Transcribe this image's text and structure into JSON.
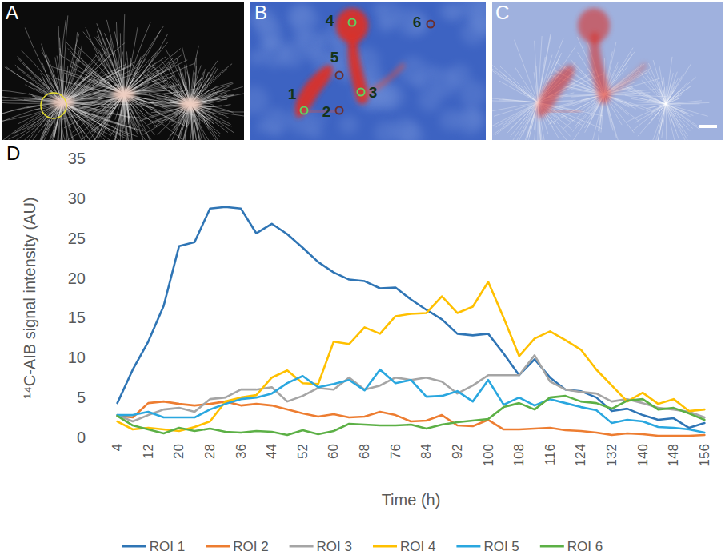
{
  "figure": {
    "panel_labels": [
      "A",
      "B",
      "C",
      "D"
    ],
    "roi_labels": [
      "1",
      "2",
      "3",
      "4",
      "5",
      "6"
    ]
  },
  "chart_data": {
    "type": "line",
    "x_label": "Time (h)",
    "y_label": "¹⁴C-AIB signal intensity (AU)",
    "categories": [
      "4",
      null,
      "12",
      null,
      "20",
      null,
      "28",
      null,
      "36",
      null,
      "44",
      null,
      "52",
      null,
      "60",
      null,
      "68",
      null,
      "76",
      null,
      "84",
      null,
      "92",
      null,
      "100",
      null,
      "108",
      null,
      "116",
      null,
      "124",
      null,
      "132",
      null,
      "140",
      null,
      "148",
      null,
      "156"
    ],
    "series": [
      {
        "name": "ROI 1",
        "color": "#2f75b5",
        "values": [
          4.3,
          8.5,
          12,
          16.5,
          24,
          24.5,
          28.7,
          28.9,
          28.7,
          25.6,
          26.8,
          25.5,
          23.8,
          22,
          20.7,
          19.8,
          19.6,
          18.7,
          18.8,
          17.3,
          16,
          14.8,
          13,
          12.8,
          13,
          10.5,
          7.8,
          9.8,
          7.5,
          6,
          5.8,
          5,
          3.3,
          3.6,
          2.8,
          2.2,
          2.4,
          1.2,
          1.8
        ]
      },
      {
        "name": "ROI 2",
        "color": "#ed7d31",
        "values": [
          2.7,
          2.5,
          4.3,
          4.5,
          4.2,
          4,
          4.2,
          4.5,
          4,
          4.2,
          4,
          3.5,
          3,
          2.6,
          2.9,
          2.5,
          2.6,
          3.2,
          2.8,
          2,
          2.1,
          2.8,
          1.5,
          1.4,
          2.2,
          1,
          1,
          1.1,
          1.2,
          0.9,
          0.8,
          0.6,
          0.3,
          0.5,
          0.4,
          0.2,
          0.2,
          0.2,
          0.3
        ]
      },
      {
        "name": "ROI 3",
        "color": "#a5a5a5",
        "values": [
          2.8,
          2,
          2.8,
          3.5,
          3.7,
          3.2,
          4.8,
          5,
          6,
          6,
          6.3,
          4.5,
          5.2,
          6.2,
          6,
          7.5,
          6,
          6.5,
          7.5,
          7.2,
          7.5,
          7,
          5.5,
          6.5,
          7.8,
          7.8,
          7.8,
          10.3,
          7,
          6,
          5.7,
          5.5,
          4.5,
          4.8,
          4.3,
          3.7,
          3.5,
          3.2,
          2.5
        ]
      },
      {
        "name": "ROI 4",
        "color": "#ffc000",
        "values": [
          2,
          1,
          1.2,
          1,
          0.8,
          1.3,
          2,
          4.5,
          5,
          5.3,
          7.5,
          8.4,
          6.8,
          6.7,
          12,
          11.7,
          13.8,
          13,
          15.2,
          15.5,
          15.6,
          17.7,
          15.6,
          16.4,
          19.5,
          15,
          10.2,
          12.4,
          13.3,
          12.2,
          11,
          8.5,
          6.5,
          4.5,
          5.6,
          4.2,
          4.8,
          3.3,
          3.5
        ]
      },
      {
        "name": "ROI 5",
        "color": "#2aa7df",
        "values": [
          2.8,
          2.8,
          3.2,
          2.5,
          2.5,
          2.5,
          3.5,
          4.2,
          4.8,
          5,
          5.5,
          6.8,
          7.7,
          6.3,
          6.7,
          7.2,
          5.9,
          8.5,
          6.8,
          7.2,
          5.1,
          5.2,
          5.8,
          4.5,
          7.2,
          4.1,
          5,
          4,
          4.8,
          4.3,
          3.8,
          3.4,
          1.8,
          2.2,
          2,
          1.3,
          1.2,
          1,
          0.6
        ]
      },
      {
        "name": "ROI 6",
        "color": "#5cb046",
        "values": [
          2.7,
          1.5,
          1,
          0.5,
          1.2,
          0.8,
          1.1,
          0.7,
          0.6,
          0.8,
          0.7,
          0.3,
          0.9,
          0.4,
          0.8,
          1.7,
          1.6,
          1.5,
          1.5,
          1.6,
          1.1,
          1.6,
          1.9,
          2.1,
          2.3,
          3.8,
          4.3,
          3.5,
          5,
          5.2,
          4.5,
          4.3,
          3.6,
          4.6,
          4.8,
          3.5,
          3.7,
          3,
          2.2
        ]
      }
    ],
    "ylim": [
      0,
      35
    ],
    "yticks": [
      0,
      5,
      10,
      15,
      20,
      25,
      30,
      35
    ],
    "grid": false,
    "legend": "bottom"
  }
}
